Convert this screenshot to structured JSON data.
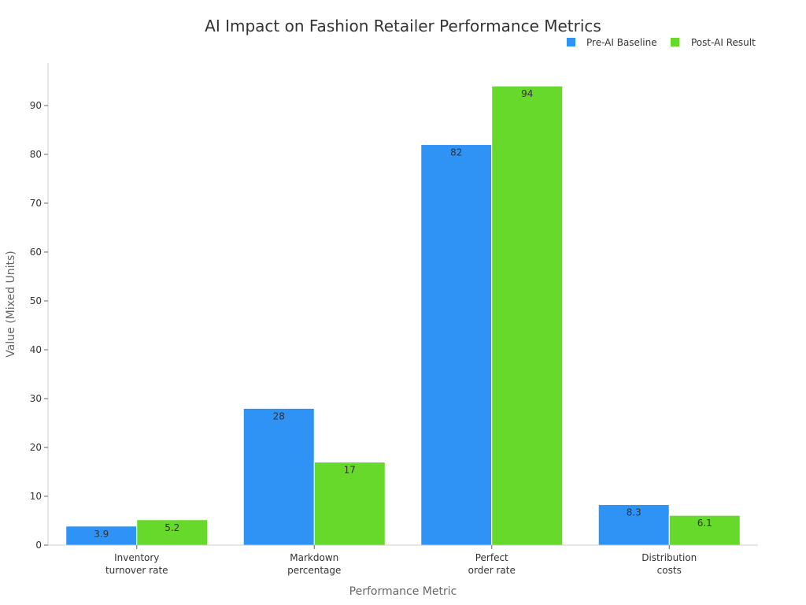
{
  "chart_data": {
    "type": "bar",
    "title": "AI Impact on Fashion Retailer Performance Metrics",
    "xlabel": "Performance Metric",
    "ylabel": "Value (Mixed Units)",
    "categories": [
      [
        "Inventory",
        "turnover rate"
      ],
      [
        "Markdown",
        "percentage"
      ],
      [
        "Perfect",
        "order rate"
      ],
      [
        "Distribution",
        "costs"
      ]
    ],
    "series": [
      {
        "name": "Pre-AI Baseline",
        "color": "#2e93f5",
        "values": [
          3.9,
          28,
          82,
          8.3
        ]
      },
      {
        "name": "Post-AI Result",
        "color": "#66d92a",
        "values": [
          5.2,
          17,
          94,
          6.1
        ]
      }
    ],
    "ylim": [
      0,
      98.7
    ],
    "yticks": [
      0,
      10,
      20,
      30,
      40,
      50,
      60,
      70,
      80,
      90
    ],
    "legend_position": "top-right",
    "grid": false
  }
}
